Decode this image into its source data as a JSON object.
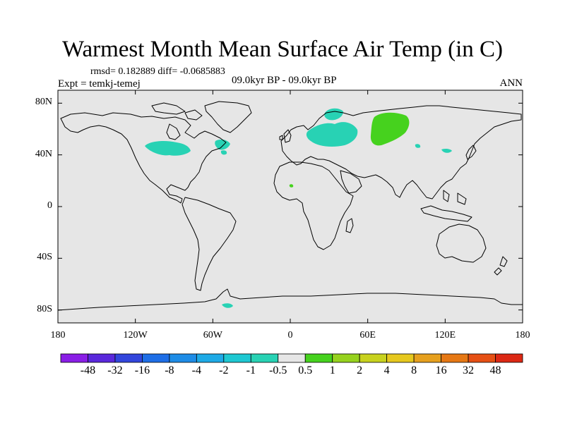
{
  "header": {
    "title": "Warmest Month Mean Surface Air Temp (in C)",
    "stats": "rmsd= 0.182889 diff= -0.0685883",
    "experiment": "Expt = temkj-temej",
    "period": "09.0kyr BP - 09.0kyr BP",
    "season": "ANN"
  },
  "axes": {
    "lat_ticks": [
      {
        "value": 80,
        "label": "80N"
      },
      {
        "value": 40,
        "label": "40N"
      },
      {
        "value": 0,
        "label": "0"
      },
      {
        "value": -40,
        "label": "40S"
      },
      {
        "value": -80,
        "label": "80S"
      }
    ],
    "lon_ticks": [
      {
        "value": -180,
        "label": "180"
      },
      {
        "value": -120,
        "label": "120W"
      },
      {
        "value": -60,
        "label": "60W"
      },
      {
        "value": 0,
        "label": "0"
      },
      {
        "value": 60,
        "label": "60E"
      },
      {
        "value": 120,
        "label": "120E"
      },
      {
        "value": 180,
        "label": "180"
      }
    ],
    "lon_range": [
      -180,
      180
    ],
    "lat_range": [
      -90,
      90
    ]
  },
  "colorbar": {
    "colors": [
      "#8a1ee6",
      "#5a28dc",
      "#3246dc",
      "#1e6ee6",
      "#1e8ce6",
      "#1eaae6",
      "#1ec8d2",
      "#28d2b4",
      "#e6e6e6",
      "#46d21e",
      "#96d21e",
      "#c8d21e",
      "#e6c81e",
      "#e6a01e",
      "#e67814",
      "#e65014",
      "#dc2814"
    ],
    "labels": [
      "-48",
      "-32",
      "-16",
      "-8",
      "-4",
      "-2",
      "-1",
      "-0.5",
      "0.5",
      "1",
      "2",
      "4",
      "8",
      "16",
      "32",
      "48"
    ],
    "background_color": "#e6e6e6"
  },
  "anomaly_regions": [
    {
      "region": "North America (Great Lakes)",
      "class": "-1 to -0.5",
      "color": "#28d2b4"
    },
    {
      "region": "Newfoundland",
      "class": "-1 to -0.5",
      "color": "#28d2b4"
    },
    {
      "region": "Scandinavia / Baltic",
      "class": "-1 to -0.5",
      "color": "#28d2b4"
    },
    {
      "region": "Western Russia",
      "class": "-1 to -0.5",
      "color": "#28d2b4"
    },
    {
      "region": "Western Siberia",
      "class": "0.5 to 1",
      "color": "#46d21e"
    },
    {
      "region": "Antarctica coast",
      "class": "-1 to -0.5",
      "color": "#28d2b4"
    }
  ]
}
